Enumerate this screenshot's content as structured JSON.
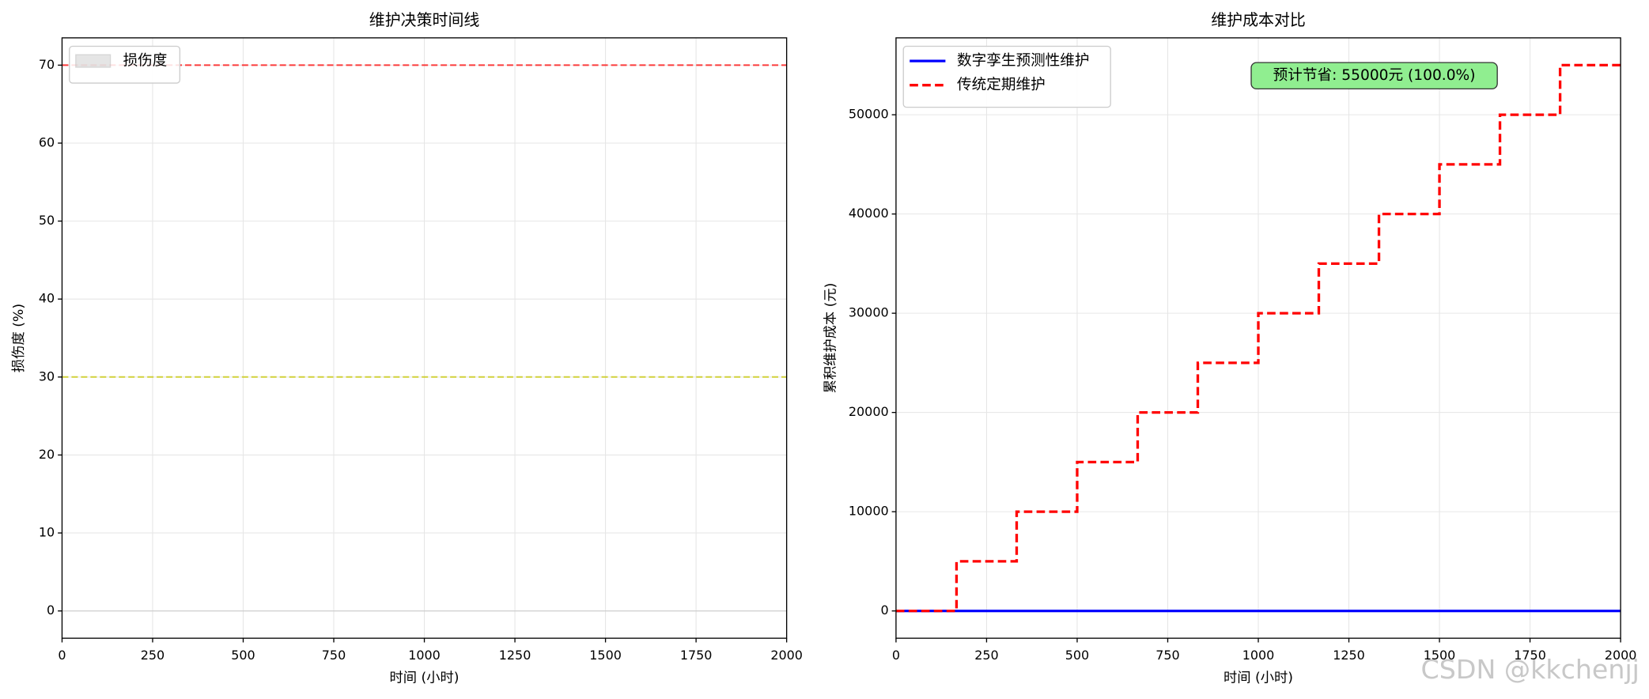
{
  "chart_data": [
    {
      "type": "line",
      "title": "维护决策时间线",
      "xlabel": "时间 (小时)",
      "ylabel": "损伤度 (%)",
      "xlim": [
        0,
        2000
      ],
      "ylim": [
        -3.5,
        73.5
      ],
      "xticks": [
        0,
        250,
        500,
        750,
        1000,
        1250,
        1500,
        1750,
        2000
      ],
      "yticks": [
        0,
        10,
        20,
        30,
        40,
        50,
        60,
        70
      ],
      "grid": true,
      "legend": "upper left",
      "series": [
        {
          "name": "损伤度",
          "style": "area",
          "color": "#bdbdbd",
          "x": [
            0,
            2000
          ],
          "values": [
            0,
            0
          ]
        }
      ],
      "reference_lines": [
        {
          "value": 70,
          "color": "#ff0000"
        },
        {
          "value": 30,
          "color": "#c8c800"
        }
      ]
    },
    {
      "type": "line",
      "title": "维护成本对比",
      "xlabel": "时间 (小时)",
      "ylabel": "累积维护成本 (元)",
      "xlim": [
        0,
        2000
      ],
      "ylim": [
        -2750,
        57750
      ],
      "xticks": [
        0,
        250,
        500,
        750,
        1000,
        1250,
        1500,
        1750,
        2000
      ],
      "yticks": [
        0,
        10000,
        20000,
        30000,
        40000,
        50000
      ],
      "grid": true,
      "legend": "upper left",
      "series": [
        {
          "name": "数字孪生预测性维护",
          "style": "solid",
          "color": "#0000ff",
          "x": [
            0,
            2000
          ],
          "values": [
            0,
            0
          ]
        },
        {
          "name": "传统定期维护",
          "style": "dashed",
          "drawstyle": "steps-post",
          "color": "#ff0000",
          "x": [
            0,
            167,
            333,
            500,
            667,
            833,
            1000,
            1167,
            1333,
            1500,
            1667,
            1833,
            2000
          ],
          "values": [
            0,
            5000,
            10000,
            15000,
            20000,
            25000,
            30000,
            35000,
            40000,
            45000,
            50000,
            55000,
            55000
          ]
        }
      ],
      "annotation": {
        "text": "预计节省: 55000元 (100.0%)",
        "color": "#90ee90"
      }
    }
  ],
  "watermark": "CSDN @kkchenjj"
}
